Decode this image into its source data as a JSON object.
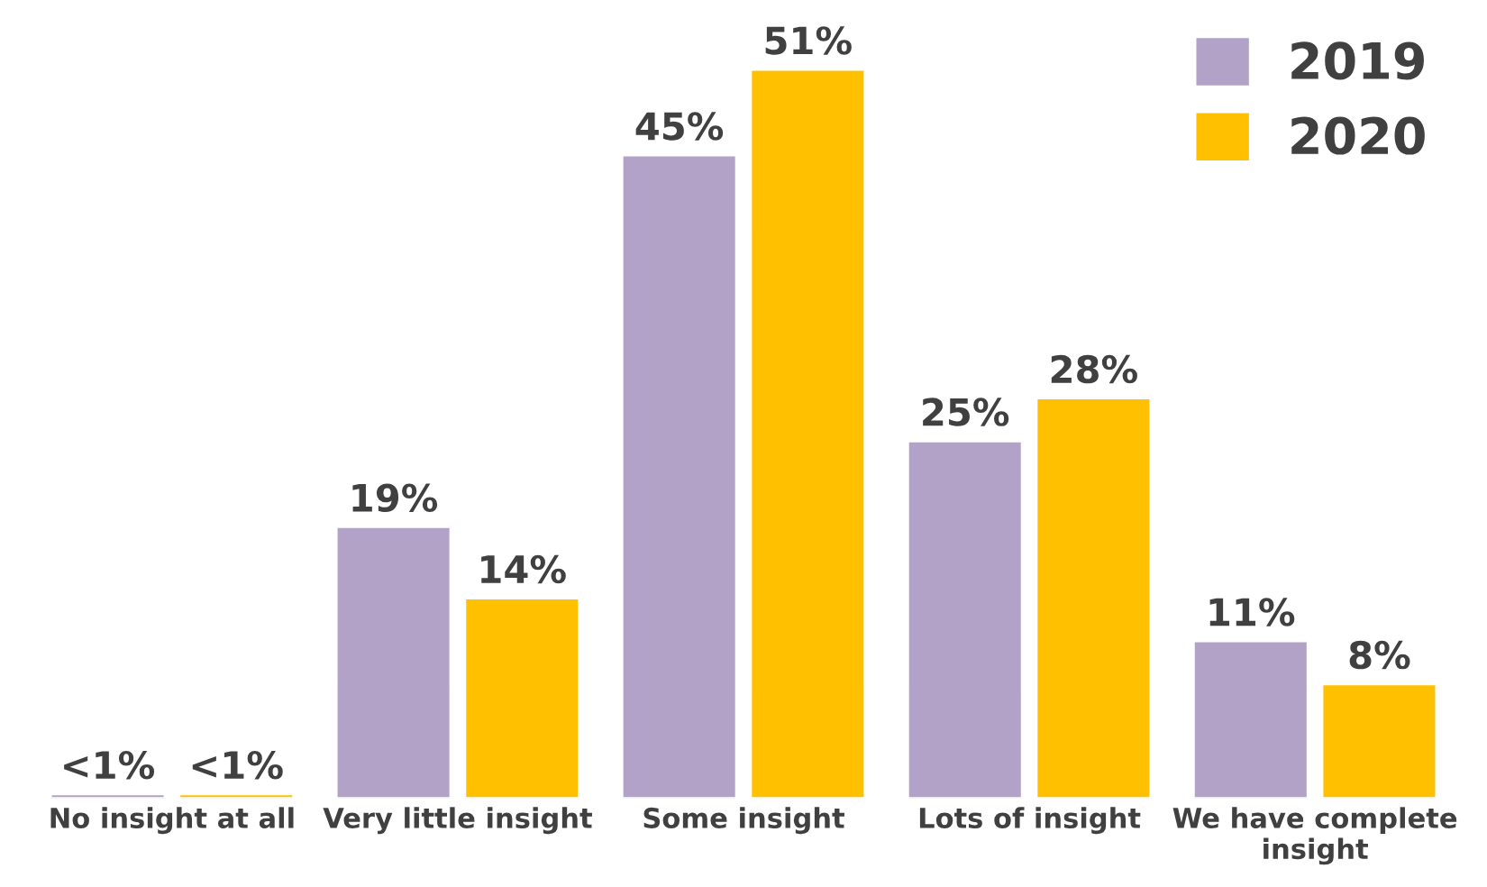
{
  "chart_data": {
    "type": "bar",
    "categories": [
      "No insight at all",
      "Very little insight",
      "Some insight",
      "Lots of insight",
      "We have complete\ninsight"
    ],
    "series": [
      {
        "name": "2019",
        "color": "#b3a2c7",
        "values": [
          0.3,
          19,
          45,
          25,
          11
        ],
        "value_labels": [
          "<1%",
          "19%",
          "45%",
          "25%",
          "11%"
        ]
      },
      {
        "name": "2020",
        "color": "#ffc000",
        "values": [
          0.3,
          14,
          51,
          28,
          8
        ],
        "value_labels": [
          "<1%",
          "14%",
          "51%",
          "28%",
          "8%"
        ]
      }
    ],
    "legend": "top right",
    "grid": false,
    "tick_labels": "x"
  }
}
